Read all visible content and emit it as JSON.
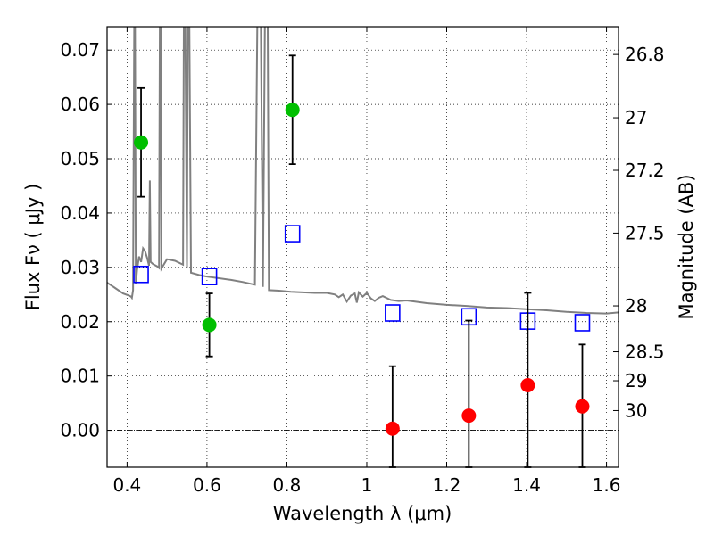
{
  "chart_data": {
    "type": "scatter",
    "xlabel": "Wavelength  λ (μm)",
    "ylabel": "Flux  Fν  ( μJy )",
    "y2label": "Magnitude (AB)",
    "xlim": [
      0.35,
      1.63
    ],
    "ylim": [
      -0.0068,
      0.0743
    ],
    "grid": true,
    "x_ticks": [
      {
        "value": 0.4,
        "label": "0.4"
      },
      {
        "value": 0.6,
        "label": "0.6"
      },
      {
        "value": 0.8,
        "label": "0.8"
      },
      {
        "value": 1.0,
        "label": "1"
      },
      {
        "value": 1.2,
        "label": "1.2"
      },
      {
        "value": 1.4,
        "label": "1.4"
      },
      {
        "value": 1.6,
        "label": "1.6"
      }
    ],
    "y_ticks": [
      {
        "value": 0.0,
        "label": "0.00"
      },
      {
        "value": 0.01,
        "label": "0.01"
      },
      {
        "value": 0.02,
        "label": "0.02"
      },
      {
        "value": 0.03,
        "label": "0.03"
      },
      {
        "value": 0.04,
        "label": "0.04"
      },
      {
        "value": 0.05,
        "label": "0.05"
      },
      {
        "value": 0.06,
        "label": "0.06"
      },
      {
        "value": 0.07,
        "label": "0.07"
      }
    ],
    "y2_ticks": [
      {
        "mag": 26.8,
        "label": "26.8"
      },
      {
        "mag": 27.0,
        "label": "27"
      },
      {
        "mag": 27.2,
        "label": "27.2"
      },
      {
        "mag": 27.5,
        "label": "27.5"
      },
      {
        "mag": 28.0,
        "label": "28"
      },
      {
        "mag": 28.5,
        "label": "28.5"
      },
      {
        "mag": 29.0,
        "label": "29"
      },
      {
        "mag": 30.0,
        "label": "30"
      }
    ],
    "series": [
      {
        "kind": "line",
        "color": "#808080",
        "points": [
          [
            0.35,
            0.0272
          ],
          [
            0.37,
            0.0262
          ],
          [
            0.39,
            0.0252
          ],
          [
            0.405,
            0.0248
          ],
          [
            0.41,
            0.0246
          ],
          [
            0.412,
            0.0244
          ],
          [
            0.415,
            0.0258
          ],
          [
            0.418,
            0.0745
          ],
          [
            0.42,
            0.0745
          ],
          [
            0.422,
            0.027
          ],
          [
            0.425,
            0.0295
          ],
          [
            0.43,
            0.032
          ],
          [
            0.435,
            0.031
          ],
          [
            0.44,
            0.0335
          ],
          [
            0.445,
            0.033
          ],
          [
            0.45,
            0.0318
          ],
          [
            0.455,
            0.0303
          ],
          [
            0.457,
            0.046
          ],
          [
            0.459,
            0.031
          ],
          [
            0.465,
            0.0306
          ],
          [
            0.475,
            0.0302
          ],
          [
            0.48,
            0.0299
          ],
          [
            0.482,
            0.0745
          ],
          [
            0.484,
            0.0745
          ],
          [
            0.486,
            0.0298
          ],
          [
            0.5,
            0.0315
          ],
          [
            0.52,
            0.0312
          ],
          [
            0.54,
            0.0305
          ],
          [
            0.542,
            0.0745
          ],
          [
            0.546,
            0.0745
          ],
          [
            0.55,
            0.03
          ],
          [
            0.552,
            0.0745
          ],
          [
            0.556,
            0.0745
          ],
          [
            0.56,
            0.029
          ],
          [
            0.58,
            0.0286
          ],
          [
            0.6,
            0.0283
          ],
          [
            0.63,
            0.028
          ],
          [
            0.66,
            0.0277
          ],
          [
            0.69,
            0.0273
          ],
          [
            0.72,
            0.0268
          ],
          [
            0.726,
            0.0745
          ],
          [
            0.735,
            0.0745
          ],
          [
            0.74,
            0.0264
          ],
          [
            0.745,
            0.0745
          ],
          [
            0.752,
            0.0745
          ],
          [
            0.755,
            0.0258
          ],
          [
            0.78,
            0.0257
          ],
          [
            0.81,
            0.0255
          ],
          [
            0.84,
            0.0254
          ],
          [
            0.87,
            0.0253
          ],
          [
            0.9,
            0.0253
          ],
          [
            0.92,
            0.025
          ],
          [
            0.93,
            0.0245
          ],
          [
            0.94,
            0.025
          ],
          [
            0.95,
            0.0237
          ],
          [
            0.96,
            0.0248
          ],
          [
            0.97,
            0.0252
          ],
          [
            0.975,
            0.0235
          ],
          [
            0.98,
            0.0254
          ],
          [
            0.99,
            0.0246
          ],
          [
            1.0,
            0.0253
          ],
          [
            1.01,
            0.0243
          ],
          [
            1.02,
            0.0238
          ],
          [
            1.03,
            0.0244
          ],
          [
            1.04,
            0.0247
          ],
          [
            1.06,
            0.024
          ],
          [
            1.08,
            0.0238
          ],
          [
            1.1,
            0.0239
          ],
          [
            1.15,
            0.0234
          ],
          [
            1.2,
            0.0231
          ],
          [
            1.25,
            0.0229
          ],
          [
            1.3,
            0.0226
          ],
          [
            1.35,
            0.0225
          ],
          [
            1.4,
            0.0223
          ],
          [
            1.45,
            0.0221
          ],
          [
            1.5,
            0.0218
          ],
          [
            1.55,
            0.0216
          ],
          [
            1.6,
            0.0215
          ],
          [
            1.63,
            0.0217
          ]
        ]
      },
      {
        "kind": "points",
        "marker": "circle",
        "color": "#00bf00",
        "points": [
          {
            "x": 0.435,
            "y": 0.053,
            "err": 0.01
          },
          {
            "x": 0.606,
            "y": 0.0194,
            "err": 0.0058
          },
          {
            "x": 0.814,
            "y": 0.059,
            "err": 0.01
          }
        ]
      },
      {
        "kind": "points",
        "marker": "circle",
        "color": "#ff0000",
        "points": [
          {
            "x": 1.0645,
            "y": 0.0003,
            "err": 0.0115
          },
          {
            "x": 1.2555,
            "y": 0.0027,
            "err": 0.0175
          },
          {
            "x": 1.403,
            "y": 0.0083,
            "err": 0.017
          },
          {
            "x": 1.5395,
            "y": 0.0044,
            "err": 0.0114
          }
        ]
      },
      {
        "kind": "points",
        "marker": "square-open",
        "color": "#0000ff",
        "points": [
          {
            "x": 0.435,
            "y": 0.0287
          },
          {
            "x": 0.606,
            "y": 0.0283
          },
          {
            "x": 0.814,
            "y": 0.0362
          },
          {
            "x": 1.0645,
            "y": 0.0216
          },
          {
            "x": 1.2555,
            "y": 0.0209
          },
          {
            "x": 1.403,
            "y": 0.0201
          },
          {
            "x": 1.5395,
            "y": 0.0198
          }
        ]
      }
    ]
  }
}
